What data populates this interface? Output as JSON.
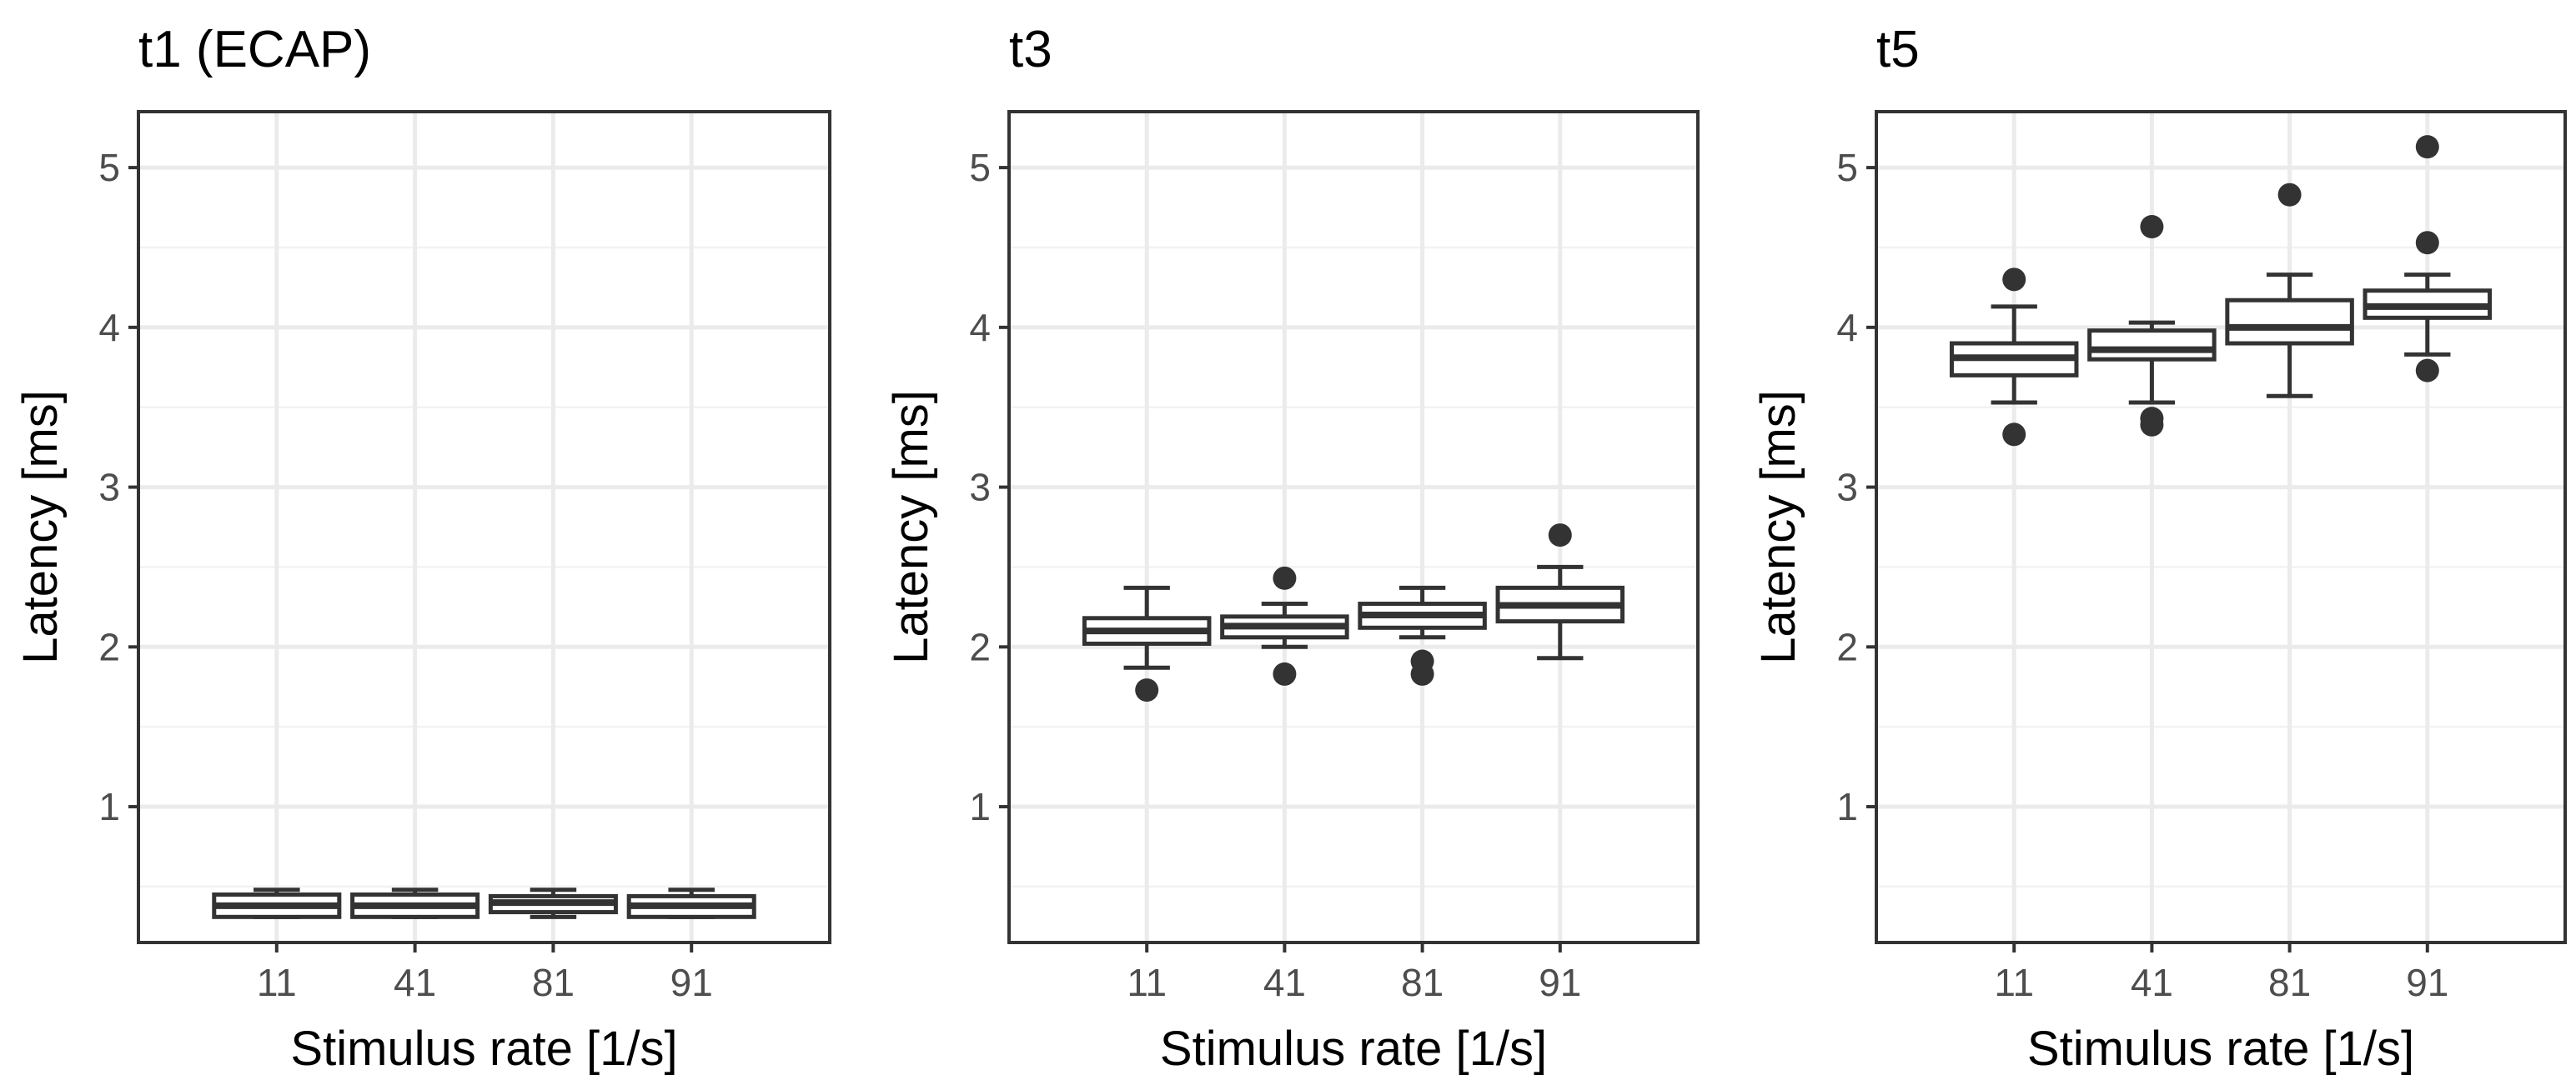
{
  "chart_data": [
    {
      "type": "box",
      "title": "t1 (ECAP)",
      "xlabel": "Stimulus rate [1/s]",
      "ylabel": "Latency [ms]",
      "ylim": [
        0.15,
        5.35
      ],
      "yticks": [
        "1",
        "2",
        "3",
        "4",
        "5"
      ],
      "categories": [
        "11",
        "41",
        "81",
        "91"
      ],
      "grid": true,
      "boxes": [
        {
          "category": "11",
          "q1": 0.31,
          "median": 0.38,
          "q3": 0.45,
          "whisker_low": 0.31,
          "whisker_high": 0.48,
          "outliers": []
        },
        {
          "category": "41",
          "q1": 0.31,
          "median": 0.38,
          "q3": 0.45,
          "whisker_low": 0.31,
          "whisker_high": 0.48,
          "outliers": []
        },
        {
          "category": "81",
          "q1": 0.34,
          "median": 0.4,
          "q3": 0.44,
          "whisker_low": 0.31,
          "whisker_high": 0.48,
          "outliers": []
        },
        {
          "category": "91",
          "q1": 0.31,
          "median": 0.38,
          "q3": 0.44,
          "whisker_low": 0.31,
          "whisker_high": 0.48,
          "outliers": []
        }
      ]
    },
    {
      "type": "box",
      "title": "t3",
      "xlabel": "Stimulus rate [1/s]",
      "ylabel": "Latency [ms]",
      "ylim": [
        0.15,
        5.35
      ],
      "yticks": [
        "1",
        "2",
        "3",
        "4",
        "5"
      ],
      "categories": [
        "11",
        "41",
        "81",
        "91"
      ],
      "grid": true,
      "boxes": [
        {
          "category": "11",
          "q1": 2.02,
          "median": 2.1,
          "q3": 2.18,
          "whisker_low": 1.87,
          "whisker_high": 2.37,
          "outliers": [
            1.73
          ]
        },
        {
          "category": "41",
          "q1": 2.06,
          "median": 2.13,
          "q3": 2.19,
          "whisker_low": 2.0,
          "whisker_high": 2.27,
          "outliers": [
            2.43,
            1.83
          ]
        },
        {
          "category": "81",
          "q1": 2.12,
          "median": 2.2,
          "q3": 2.27,
          "whisker_low": 2.06,
          "whisker_high": 2.37,
          "outliers": [
            1.91,
            1.83
          ]
        },
        {
          "category": "91",
          "q1": 2.16,
          "median": 2.26,
          "q3": 2.37,
          "whisker_low": 1.93,
          "whisker_high": 2.5,
          "outliers": [
            2.7
          ]
        }
      ]
    },
    {
      "type": "box",
      "title": "t5",
      "xlabel": "Stimulus rate [1/s]",
      "ylabel": "Latency [ms]",
      "ylim": [
        0.15,
        5.35
      ],
      "yticks": [
        "1",
        "2",
        "3",
        "4",
        "5"
      ],
      "categories": [
        "11",
        "41",
        "81",
        "91"
      ],
      "grid": true,
      "boxes": [
        {
          "category": "11",
          "q1": 3.7,
          "median": 3.81,
          "q3": 3.9,
          "whisker_low": 3.53,
          "whisker_high": 4.13,
          "outliers": [
            4.3,
            3.33
          ]
        },
        {
          "category": "41",
          "q1": 3.8,
          "median": 3.86,
          "q3": 3.98,
          "whisker_low": 3.53,
          "whisker_high": 4.03,
          "outliers": [
            4.63,
            3.43,
            3.39
          ]
        },
        {
          "category": "81",
          "q1": 3.9,
          "median": 4.0,
          "q3": 4.17,
          "whisker_low": 3.57,
          "whisker_high": 4.33,
          "outliers": [
            4.83
          ]
        },
        {
          "category": "91",
          "q1": 4.06,
          "median": 4.13,
          "q3": 4.23,
          "whisker_low": 3.83,
          "whisker_high": 4.33,
          "outliers": [
            5.13,
            4.53,
            3.73
          ]
        }
      ]
    }
  ]
}
